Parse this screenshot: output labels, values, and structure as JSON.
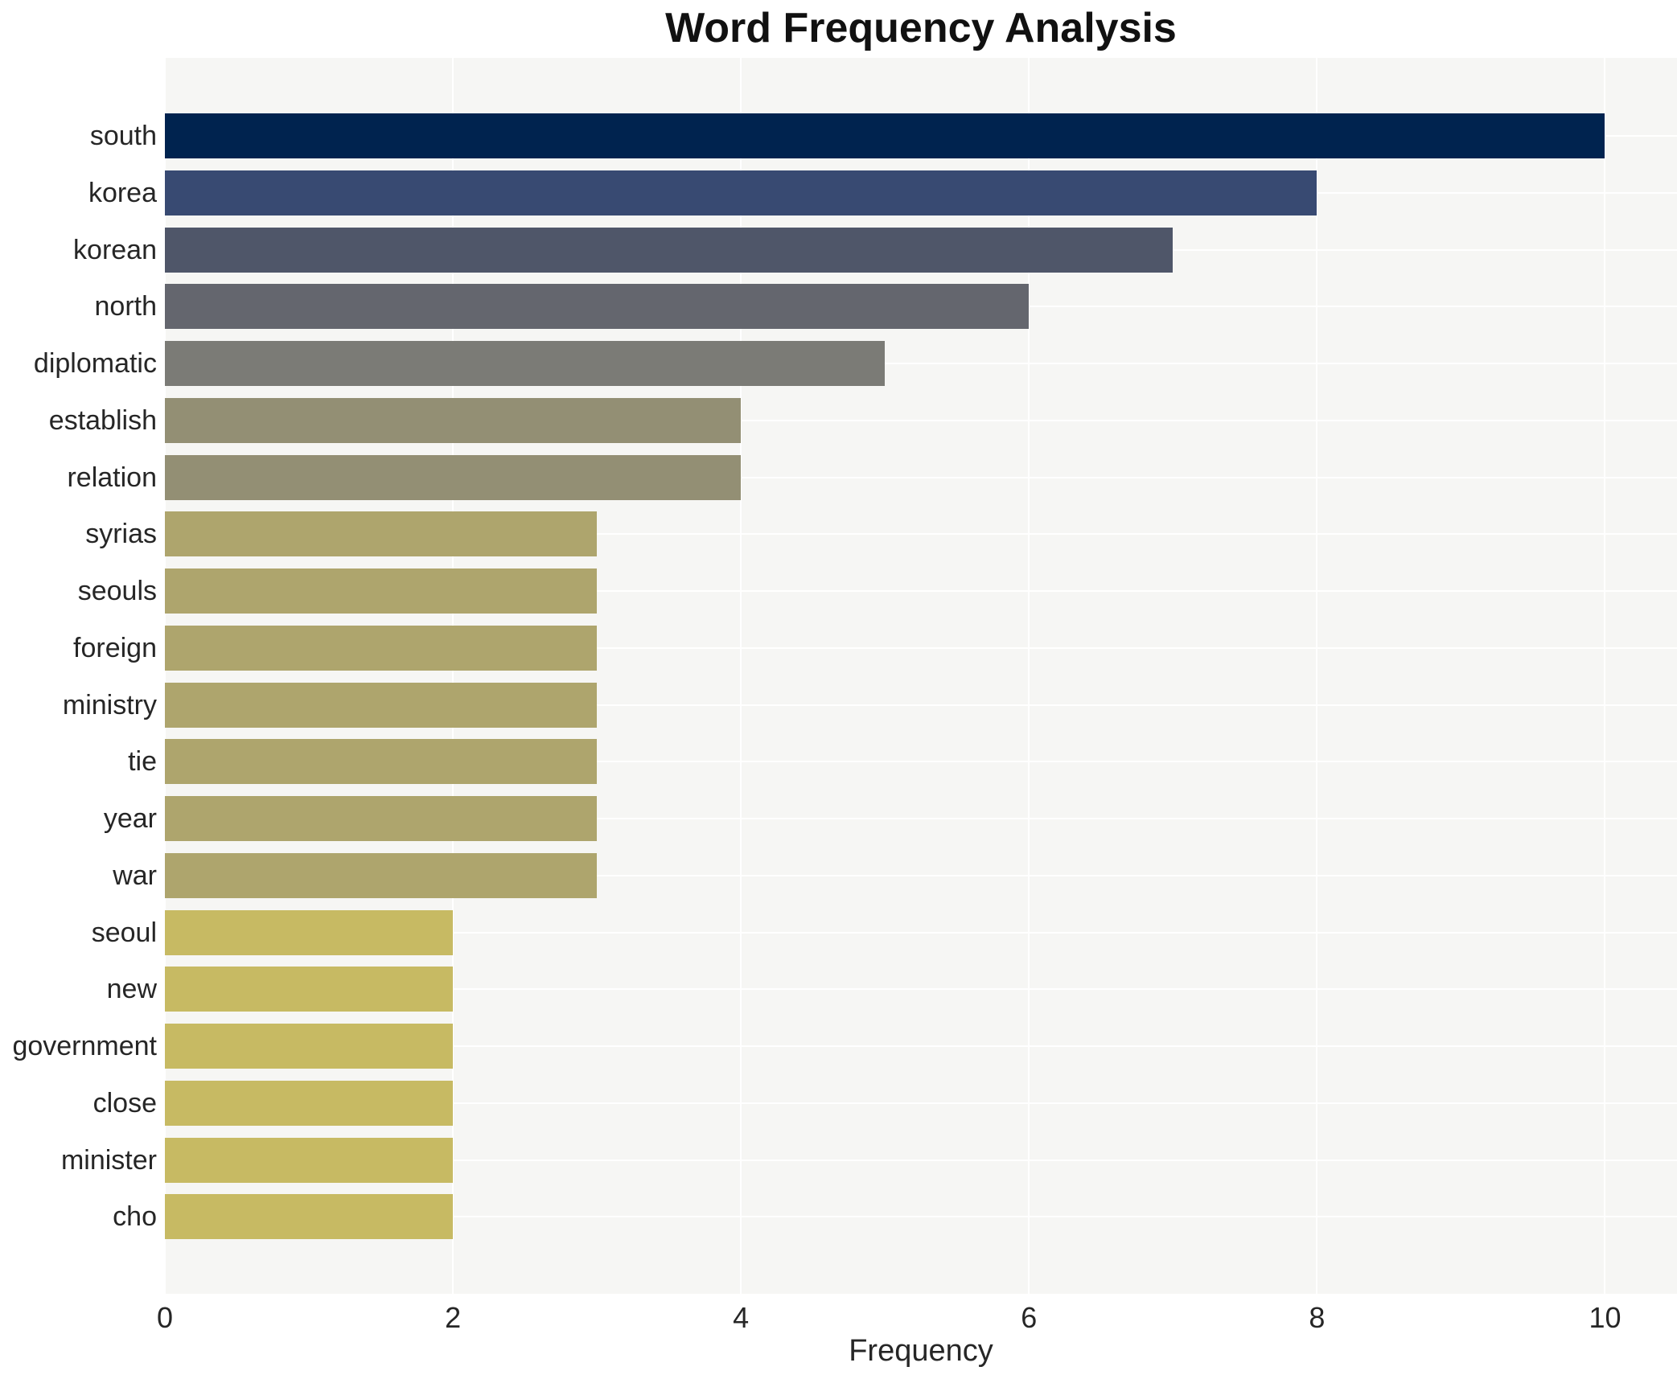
{
  "chart_data": {
    "type": "bar",
    "orientation": "horizontal",
    "title": "Word Frequency Analysis",
    "xlabel": "Frequency",
    "ylabel": "",
    "categories": [
      "south",
      "korea",
      "korean",
      "north",
      "diplomatic",
      "establish",
      "relation",
      "syrias",
      "seouls",
      "foreign",
      "ministry",
      "tie",
      "year",
      "war",
      "seoul",
      "new",
      "government",
      "close",
      "minister",
      "cho"
    ],
    "values": [
      10,
      8,
      7,
      6,
      5,
      4,
      4,
      3,
      3,
      3,
      3,
      3,
      3,
      3,
      2,
      2,
      2,
      2,
      2,
      2
    ],
    "bar_colors": [
      "#00234f",
      "#384a72",
      "#4f5669",
      "#64666e",
      "#7b7b76",
      "#938f74",
      "#938f74",
      "#aea56d",
      "#aea56d",
      "#aea56d",
      "#aea56d",
      "#aea56d",
      "#aea56d",
      "#aea56d",
      "#c7ba63",
      "#c7ba63",
      "#c7ba63",
      "#c7ba63",
      "#c7ba63",
      "#c7ba63"
    ],
    "xticks": [
      0,
      2,
      4,
      6,
      8,
      10
    ],
    "xlim": [
      0,
      10.5
    ],
    "grid": "white gridlines on light-gray plot background, both axes",
    "legend": "none",
    "colors": {
      "figure_bg": "#ffffff",
      "plot_bg": "#f6f6f4",
      "gridline": "#ffffff",
      "tick_text": "#262626",
      "title_text": "#111111"
    }
  }
}
